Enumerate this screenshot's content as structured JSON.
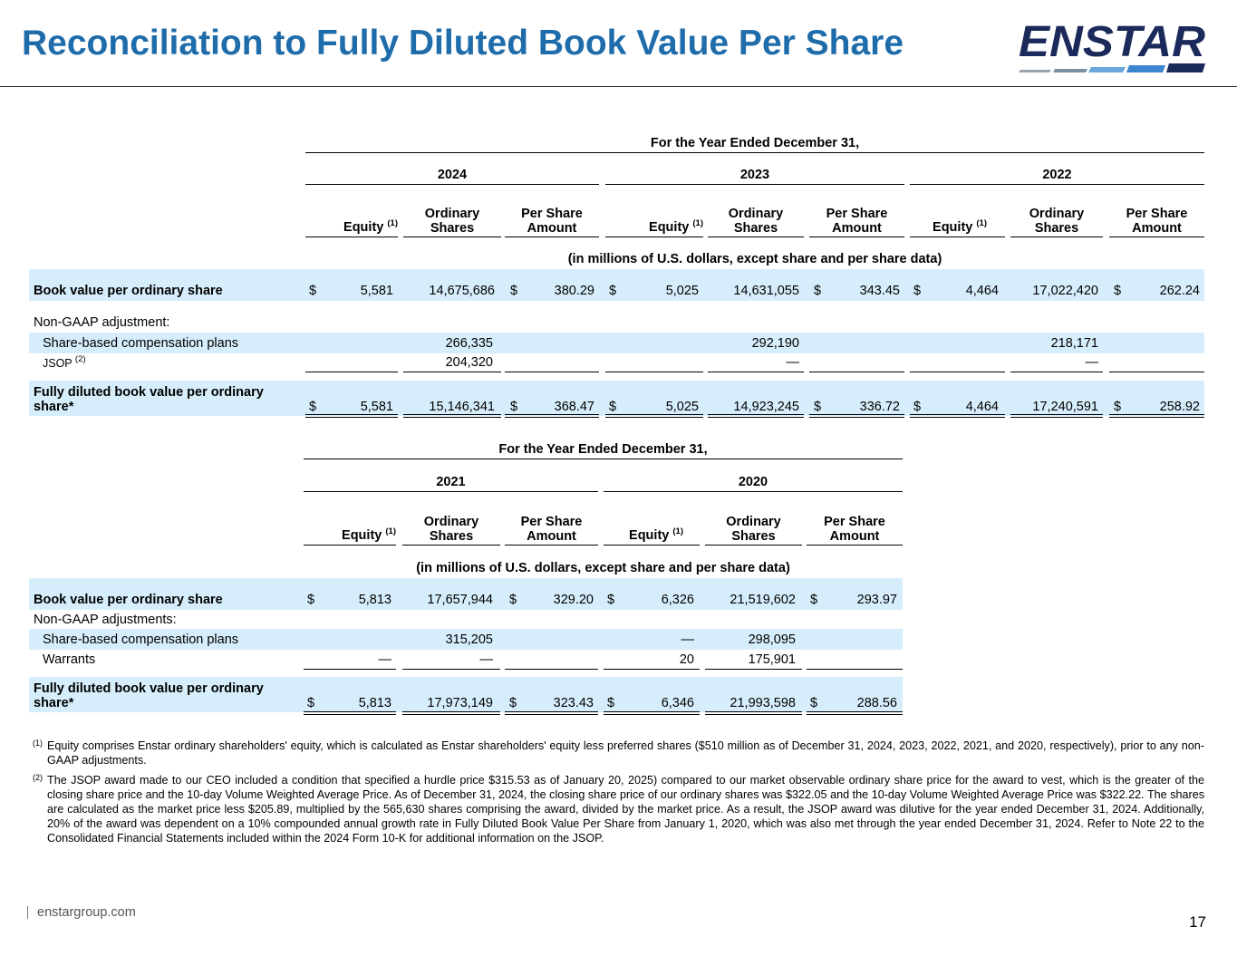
{
  "title": "Reconciliation to Fully Diluted Book Value Per Share",
  "logo_text": "ENSTAR",
  "table1": {
    "period_header": "For the Year Ended December 31,",
    "years": [
      "2024",
      "2023",
      "2022"
    ],
    "col_equity": "Equity",
    "col_equity_note": "(1)",
    "col_shares_1": "Ordinary",
    "col_shares_2": "Shares",
    "col_ps_1": "Per Share",
    "col_ps_2": "Amount",
    "units": "(in millions of U.S. dollars, except share and per share data)",
    "bv_label": "Book value per ordinary share",
    "bv": [
      {
        "dollar1": "$",
        "equity": "5,581",
        "shares": "14,675,686",
        "dollar2": "$",
        "ps": "380.29"
      },
      {
        "dollar1": "$",
        "equity": "5,025",
        "shares": "14,631,055",
        "dollar2": "$",
        "ps": "343.45"
      },
      {
        "dollar1": "$",
        "equity": "4,464",
        "shares": "17,022,420",
        "dollar2": "$",
        "ps": "262.24"
      }
    ],
    "adj_label": "Non-GAAP adjustment:",
    "sbc_label": "Share-based compensation plans",
    "sbc": [
      "266,335",
      "292,190",
      "218,171"
    ],
    "jsop_label": "JSOP",
    "jsop_note": "(2)",
    "jsop": [
      "204,320",
      "—",
      "—"
    ],
    "fd_label_1": "Fully diluted book value per ordinary",
    "fd_label_2": "share*",
    "fd": [
      {
        "dollar1": "$",
        "equity": "5,581",
        "shares": "15,146,341",
        "dollar2": "$",
        "ps": "368.47"
      },
      {
        "dollar1": "$",
        "equity": "5,025",
        "shares": "14,923,245",
        "dollar2": "$",
        "ps": "336.72"
      },
      {
        "dollar1": "$",
        "equity": "4,464",
        "shares": "17,240,591",
        "dollar2": "$",
        "ps": "258.92"
      }
    ]
  },
  "table2": {
    "period_header": "For the Year Ended December 31,",
    "years": [
      "2021",
      "2020"
    ],
    "units": "(in millions of U.S. dollars, except share and per share data)",
    "bv_label": "Book value per ordinary share",
    "bv": [
      {
        "dollar1": "$",
        "equity": "5,813",
        "shares": "17,657,944",
        "dollar2": "$",
        "ps": "329.20"
      },
      {
        "dollar1": "$",
        "equity": "6,326",
        "shares": "21,519,602",
        "dollar2": "$",
        "ps": "293.97"
      }
    ],
    "adj_label": "Non-GAAP adjustments:",
    "sbc_label": "Share-based compensation plans",
    "sbc": [
      {
        "equity": "",
        "shares": "315,205"
      },
      {
        "equity": "—",
        "shares": "298,095"
      }
    ],
    "warrants_label": "Warrants",
    "warrants": [
      {
        "equity": "—",
        "shares": "—"
      },
      {
        "equity": "20",
        "shares": "175,901"
      }
    ],
    "fd_label_1": "Fully diluted book value per ordinary",
    "fd_label_2": "share*",
    "fd": [
      {
        "dollar1": "$",
        "equity": "5,813",
        "shares": "17,973,149",
        "dollar2": "$",
        "ps": "323.43"
      },
      {
        "dollar1": "$",
        "equity": "6,346",
        "shares": "21,993,598",
        "dollar2": "$",
        "ps": "288.56"
      }
    ]
  },
  "notes": [
    {
      "marker": "(1)",
      "text": "Equity comprises Enstar ordinary shareholders' equity, which is calculated as Enstar shareholders' equity less preferred shares ($510 million as of December 31, 2024, 2023, 2022, 2021, and 2020, respectively), prior to any non-GAAP adjustments."
    },
    {
      "marker": "(2)",
      "text": "The JSOP award made to our CEO included a condition that specified a hurdle price $315.53 as of January 20, 2025) compared to our market observable ordinary share price for the award to vest, which is the greater of the closing share price and the 10-day Volume Weighted Average Price. As of December 31, 2024, the closing share price of our ordinary shares was $322.05 and the 10-day Volume Weighted Average Price was $322.22. The shares are calculated as the market price less $205.89, multiplied by the 565,630 shares comprising the award, divided by the market price. As a result, the JSOP award was dilutive for the year ended December 31, 2024. Additionally, 20% of the award was dependent on a 10% compounded annual growth rate in Fully Diluted Book Value Per Share from January 1, 2020, which was also met through the year ended December 31, 2024. Refer to Note 22 to the Consolidated Financial Statements included within the 2024 Form 10-K for additional information on the JSOP."
    }
  ],
  "footer_url": "enstargroup.com",
  "page_number": "17",
  "colors": {
    "title": "#1f6cab",
    "highlight": "#d6eefb",
    "logo_dark": "#1b2a5a",
    "logo_light": "#6aa6dc"
  }
}
